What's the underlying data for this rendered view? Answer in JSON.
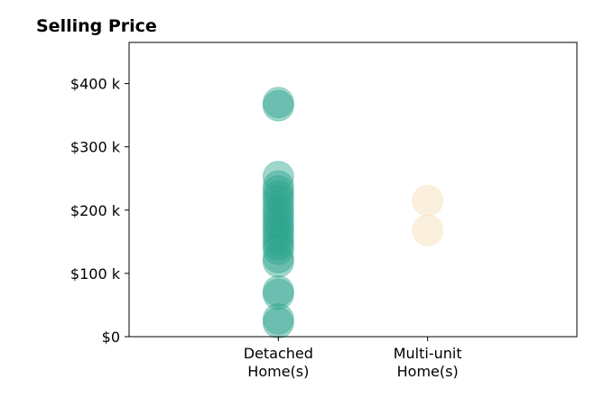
{
  "chart_data": {
    "type": "scatter",
    "title": "Selling Price",
    "xlabel": "",
    "ylabel": "",
    "categories": [
      "Detached\nHome(s)",
      "Multi-unit\nHome(s)"
    ],
    "xlim": [
      -1,
      2
    ],
    "ylim": [
      0,
      465000
    ],
    "yticks": [
      0,
      100000,
      200000,
      300000,
      400000
    ],
    "ytick_labels": [
      "$0",
      "$100 k",
      "$200 k",
      "$300 k",
      "$400 k"
    ],
    "grid": false,
    "legend": "none",
    "series": [
      {
        "category_index": 0,
        "color": "#2ca58d",
        "values": [
          370000,
          365000,
          253000,
          238000,
          230000,
          222000,
          215000,
          205000,
          198000,
          190000,
          182000,
          175000,
          168000,
          160000,
          152000,
          145000,
          138000,
          125000,
          118000,
          72000,
          67000,
          28000,
          22000
        ]
      },
      {
        "category_index": 1,
        "color": "#f5deb3",
        "values": [
          215000,
          168000
        ]
      }
    ]
  }
}
